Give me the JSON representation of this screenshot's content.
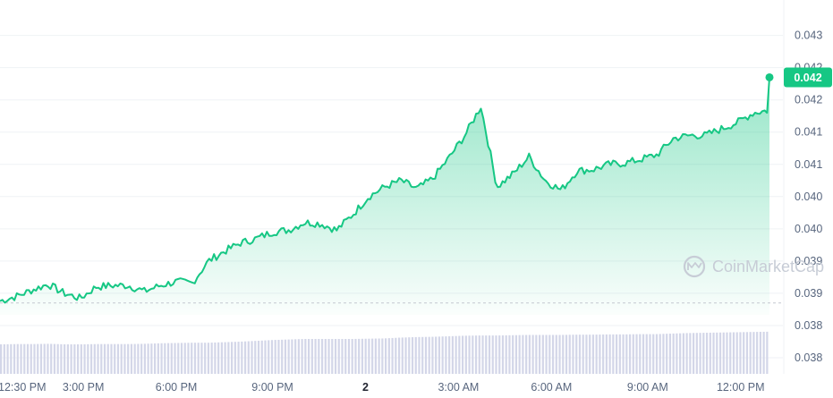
{
  "chart_data": {
    "type": "area",
    "title": "",
    "ylim": [
      0.03775,
      0.0433
    ],
    "grid": true,
    "x_ticks": [
      "12:30 PM",
      "3:00 PM",
      "6:00 PM",
      "9:00 PM",
      "2",
      "3:00 AM",
      "6:00 AM",
      "9:00 AM",
      "12:00 PM"
    ],
    "y_ticks": [
      "0.043",
      "0.042",
      "0.042",
      "0.041",
      "0.041",
      "0.040",
      "0.040",
      "0.039",
      "0.039",
      "0.038",
      "0.038"
    ],
    "y_tick_values": [
      0.043,
      0.0425,
      0.042,
      0.0415,
      0.041,
      0.0405,
      0.04,
      0.0395,
      0.039,
      0.0385,
      0.038
    ],
    "baseline_price": 0.03885,
    "current_price_label": "0.042",
    "current_price": 0.04235,
    "series": [
      {
        "x_hours": [
          0,
          0.5,
          1,
          1.5,
          2,
          2.5,
          3,
          3.5,
          4,
          4.5,
          5,
          5.5,
          6,
          6.5,
          7,
          7.5,
          8,
          8.5,
          9,
          9.5,
          10,
          10.5,
          11,
          11.5,
          12,
          12.5,
          13,
          13.5,
          14,
          14.5,
          15,
          15.5,
          16,
          16.5,
          17,
          17.5,
          18,
          18.5,
          19,
          19.5,
          20,
          20.5,
          21,
          21.5,
          22,
          22.5,
          23,
          23.5,
          24
        ],
        "values": [
          0.03888,
          0.03895,
          0.03905,
          0.03914,
          0.039,
          0.03892,
          0.0391,
          0.03912,
          0.03912,
          0.03903,
          0.03912,
          0.03918,
          0.03916,
          0.0395,
          0.03965,
          0.03978,
          0.03985,
          0.03995,
          0.03998,
          0.0401,
          0.04008,
          0.03998,
          0.04022,
          0.0405,
          0.04065,
          0.04075,
          0.04062,
          0.04078,
          0.0411,
          0.04145,
          0.0419,
          0.04065,
          0.04085,
          0.04112,
          0.04075,
          0.0406,
          0.0409,
          0.04092,
          0.041,
          0.04102,
          0.04108,
          0.04115,
          0.0414,
          0.04145,
          0.04145,
          0.04155,
          0.04165,
          0.0418,
          0.04184
        ]
      }
    ],
    "volume": [
      0.3,
      0.31,
      0.31,
      0.32,
      0.3,
      0.3,
      0.31,
      0.31,
      0.31,
      0.32,
      0.34,
      0.35,
      0.36,
      0.36,
      0.38,
      0.4,
      0.43,
      0.46,
      0.48,
      0.5,
      0.5,
      0.5,
      0.5,
      0.51,
      0.52,
      0.55,
      0.57,
      0.58,
      0.6,
      0.62,
      0.63,
      0.63,
      0.64,
      0.65,
      0.65,
      0.65,
      0.66,
      0.66,
      0.67,
      0.67,
      0.68,
      0.68,
      0.7,
      0.72,
      0.73,
      0.74,
      0.75,
      0.76,
      0.77
    ],
    "volume_color": "#d3d6e8",
    "line_color": "#16c784",
    "area_color_top": "#16c784",
    "grid_color": "#eff2f5",
    "watermark": "CoinMarketCap"
  }
}
